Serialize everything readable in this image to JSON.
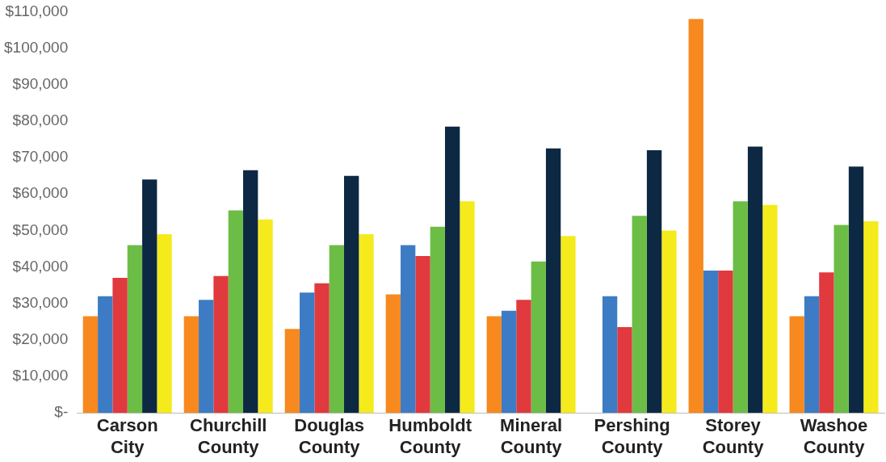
{
  "chart_data": {
    "type": "bar",
    "categories": [
      "Carson City",
      "Churchill County",
      "Douglas County",
      "Humboldt County",
      "Mineral County",
      "Pershing County",
      "Storey County",
      "Washoe County"
    ],
    "series": [
      {
        "color": "#f7891f",
        "values": [
          26500,
          26500,
          23000,
          32500,
          26500,
          null,
          108000,
          26500
        ]
      },
      {
        "color": "#3d7cc4",
        "values": [
          32000,
          31000,
          33000,
          46000,
          28000,
          32000,
          39000,
          32000
        ]
      },
      {
        "color": "#e0393e",
        "values": [
          37000,
          37500,
          35500,
          43000,
          31000,
          23500,
          39000,
          38500
        ]
      },
      {
        "color": "#6cbd45",
        "values": [
          46000,
          55500,
          46000,
          51000,
          41500,
          54000,
          58000,
          51500
        ]
      },
      {
        "color": "#0d2843",
        "values": [
          64000,
          66500,
          65000,
          78500,
          72500,
          72000,
          73000,
          67500
        ]
      },
      {
        "color": "#f4ea1c",
        "values": [
          49000,
          53000,
          49000,
          58000,
          48500,
          50000,
          57000,
          52500
        ]
      }
    ],
    "ylim": [
      0,
      110000
    ],
    "yticks": [
      {
        "value": 0,
        "label": "$-"
      },
      {
        "value": 10000,
        "label": "$10,000"
      },
      {
        "value": 20000,
        "label": "$20,000"
      },
      {
        "value": 30000,
        "label": "$30,000"
      },
      {
        "value": 40000,
        "label": "$40,000"
      },
      {
        "value": 50000,
        "label": "$50,000"
      },
      {
        "value": 60000,
        "label": "$60,000"
      },
      {
        "value": 70000,
        "label": "$70,000"
      },
      {
        "value": 80000,
        "label": "$80,000"
      },
      {
        "value": 90000,
        "label": "$90,000"
      },
      {
        "value": 100000,
        "label": "$100,000"
      },
      {
        "value": 110000,
        "label": "$110,000"
      }
    ],
    "grid": false,
    "legend": false
  }
}
